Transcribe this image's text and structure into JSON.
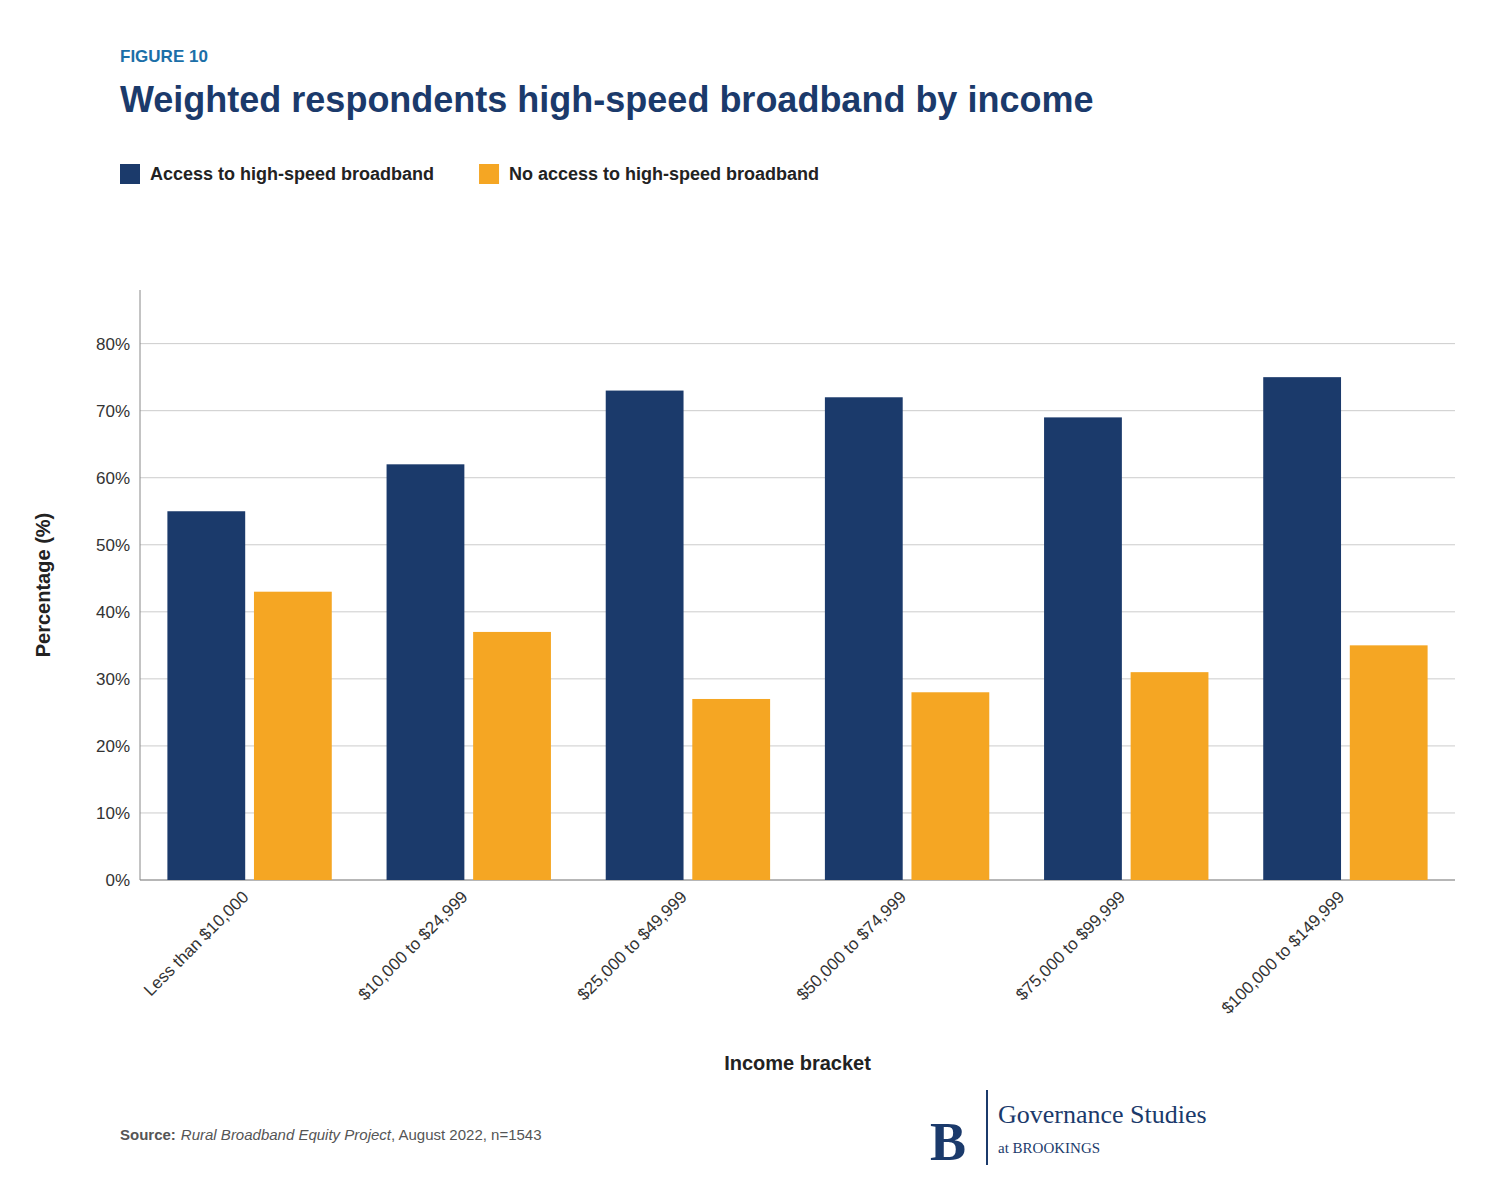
{
  "chart_data": {
    "type": "bar",
    "figure_label": "FIGURE 10",
    "title": "Weighted respondents high-speed broadband by income",
    "categories": [
      "Less than $10,000",
      "$10,000 to $24,999",
      "$25,000 to $49,999",
      "$50,000 to $74,999",
      "$75,000 to $99,999",
      "$100,000 to $149,999"
    ],
    "series": [
      {
        "name": "Access to high-speed broadband",
        "color": "#1B3A6B",
        "values": [
          55,
          62,
          73,
          72,
          69,
          75
        ]
      },
      {
        "name": "No access to high-speed broadband",
        "color": "#F5A623",
        "values": [
          43,
          37,
          27,
          28,
          31,
          35
        ]
      }
    ],
    "xlabel": "Income bracket",
    "ylabel": "Percentage (%)",
    "ylim": [
      0,
      88
    ],
    "yticks": [
      {
        "value": 0,
        "label": "0%"
      },
      {
        "value": 10,
        "label": "10%"
      },
      {
        "value": 20,
        "label": "20%"
      },
      {
        "value": 30,
        "label": "30%"
      },
      {
        "value": 40,
        "label": "40%"
      },
      {
        "value": 50,
        "label": "50%"
      },
      {
        "value": 60,
        "label": "60%"
      },
      {
        "value": 70,
        "label": "70%"
      },
      {
        "value": 80,
        "label": "80%"
      }
    ],
    "grid": true,
    "legend": "upper left",
    "source": [
      "Source:",
      "Rural Broadband Equity Project",
      ", August 2022, n=1543"
    ],
    "logo": [
      "B",
      "Governance Studies",
      "at BROOKINGS"
    ]
  }
}
